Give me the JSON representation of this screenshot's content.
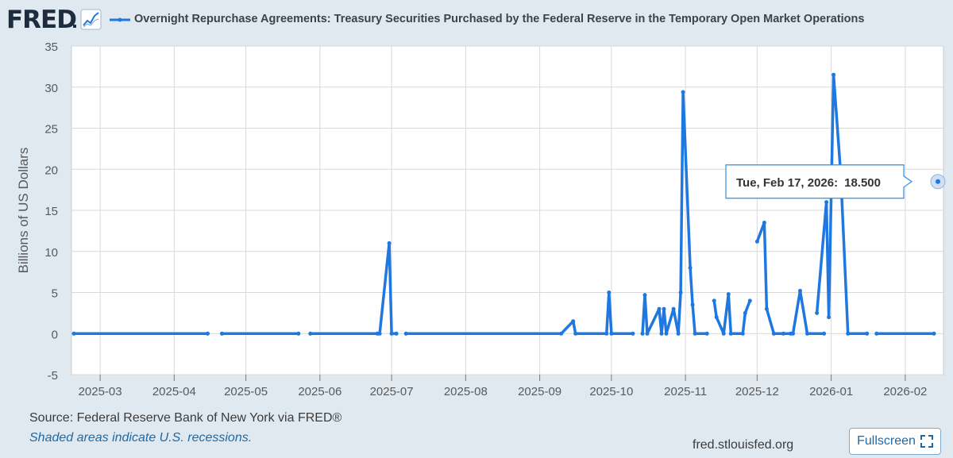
{
  "header": {
    "logo": "FRED",
    "logo_icon": "line-graph-icon",
    "title": "Overnight Repurchase Agreements: Treasury Securities Purchased by the Federal Reserve in the Temporary Open Market Operations"
  },
  "tooltip": {
    "date": "Tue, Feb 17, 2026:",
    "value": "18.500"
  },
  "footer": {
    "source": "Source: Federal Reserve Bank of New York via FRED®",
    "recession_note": "Shaded areas indicate U.S. recessions.",
    "site": "fred.stlouisfed.org",
    "fullscreen_label": "Fullscreen",
    "fullscreen_icon": "fullscreen-icon"
  },
  "colors": {
    "series": "#1f77e0",
    "accent": "#1d69a5",
    "background": "#e1e9f0",
    "plot_bg": "#ffffff",
    "grid": "#d9d9d9"
  },
  "chart_data": {
    "type": "line",
    "ylabel": "Billions of US Dollars",
    "ylim": [
      -5,
      35
    ],
    "yticks": [
      -5,
      0,
      5,
      10,
      15,
      20,
      25,
      30,
      35
    ],
    "xlim": [
      "2025-02-17",
      "2026-02-17"
    ],
    "xticks": [
      "2025-03",
      "2025-04",
      "2025-05",
      "2025-06",
      "2025-07",
      "2025-08",
      "2025-09",
      "2025-10",
      "2025-11",
      "2025-12",
      "2026-01",
      "2026-02"
    ],
    "grid": true,
    "series": [
      {
        "name": "Overnight Repurchase Agreements: Treasury Securities Purchased by the Federal Reserve in the Temporary Open Market Operations",
        "segments": [
          [
            [
              "2025-02-18",
              0
            ],
            [
              "2025-04-15",
              0
            ]
          ],
          [
            [
              "2025-04-21",
              0
            ],
            [
              "2025-05-23",
              0
            ]
          ],
          [
            [
              "2025-05-28",
              0
            ],
            [
              "2025-06-25",
              0
            ]
          ],
          [
            [
              "2025-06-26",
              0
            ],
            [
              "2025-06-30",
              11.0
            ],
            [
              "2025-07-01",
              0
            ],
            [
              "2025-07-03",
              0
            ]
          ],
          [
            [
              "2025-07-07",
              0
            ],
            [
              "2025-09-10",
              0
            ],
            [
              "2025-09-15",
              1.5
            ],
            [
              "2025-09-16",
              0
            ],
            [
              "2025-09-29",
              0
            ],
            [
              "2025-09-30",
              5.0
            ],
            [
              "2025-10-01",
              0
            ],
            [
              "2025-10-10",
              0
            ]
          ],
          [
            [
              "2025-10-14",
              0
            ],
            [
              "2025-10-15",
              4.7
            ],
            [
              "2025-10-16",
              0
            ],
            [
              "2025-10-21",
              3.0
            ],
            [
              "2025-10-22",
              0
            ],
            [
              "2025-10-23",
              3.0
            ],
            [
              "2025-10-24",
              0
            ],
            [
              "2025-10-27",
              3.0
            ],
            [
              "2025-10-29",
              0
            ],
            [
              "2025-10-30",
              5.0
            ],
            [
              "2025-10-31",
              29.4
            ],
            [
              "2025-11-03",
              8.0
            ],
            [
              "2025-11-04",
              3.5
            ],
            [
              "2025-11-05",
              0
            ],
            [
              "2025-11-10",
              0
            ]
          ],
          [
            [
              "2025-11-13",
              4.0
            ],
            [
              "2025-11-14",
              2.0
            ],
            [
              "2025-11-17",
              0
            ],
            [
              "2025-11-19",
              4.8
            ],
            [
              "2025-11-20",
              0
            ],
            [
              "2025-11-25",
              0
            ],
            [
              "2025-11-26",
              2.5
            ],
            [
              "2025-11-28",
              4.0
            ]
          ],
          [
            [
              "2025-12-01",
              11.2
            ],
            [
              "2025-12-04",
              13.5
            ],
            [
              "2025-12-05",
              3.0
            ],
            [
              "2025-12-08",
              0
            ],
            [
              "2025-12-12",
              0
            ],
            [
              "2025-12-15",
              0
            ],
            [
              "2025-12-16",
              0
            ],
            [
              "2025-12-19",
              5.2
            ],
            [
              "2025-12-22",
              0
            ],
            [
              "2025-12-29",
              0
            ]
          ],
          [
            [
              "2025-12-26",
              2.5
            ],
            [
              "2025-12-30",
              16.0
            ],
            [
              "2025-12-31",
              2.0
            ],
            [
              "2026-01-02",
              31.5
            ],
            [
              "2026-01-05",
              19.5
            ],
            [
              "2026-01-08",
              0
            ],
            [
              "2026-01-16",
              0
            ]
          ],
          [
            [
              "2026-01-20",
              0
            ],
            [
              "2026-02-13",
              0
            ]
          ]
        ],
        "hover_point": [
          "2026-02-17",
          18.5
        ]
      }
    ]
  }
}
